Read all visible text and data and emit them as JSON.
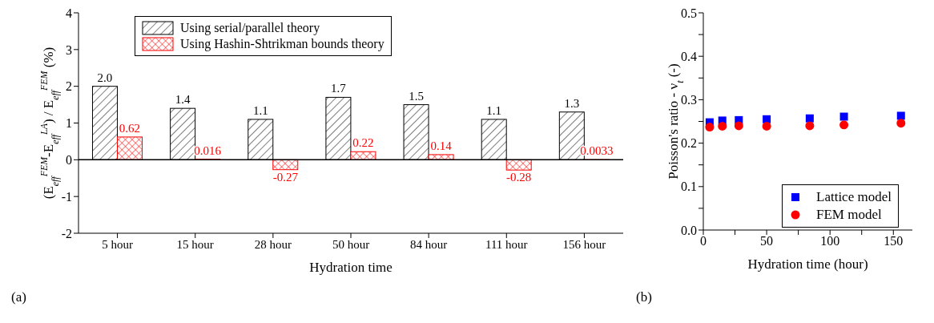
{
  "chart_data": [
    {
      "type": "bar",
      "xlabel": "Hydration time",
      "ylabel": "(E$_{eff}$$^{FEM}$-E$_{eff}$$^{LA}$) / E$_{eff}$$^{FEM}$ (%)",
      "categories": [
        "5 hour",
        "15 hour",
        "28 hour",
        "50 hour",
        "84 hour",
        "111 hour",
        "156 hour"
      ],
      "series": [
        {
          "name": "Using serial/parallel theory",
          "color": "#000000",
          "values": [
            2.0,
            1.4,
            1.1,
            1.7,
            1.5,
            1.1,
            1.3
          ],
          "value_labels": [
            "2.0",
            "1.4",
            "1.1",
            "1.7",
            "1.5",
            "1.1",
            "1.3"
          ]
        },
        {
          "name": "Using Hashin-Shtrikman bounds theory",
          "color": "#ff0000",
          "values": [
            0.62,
            0.016,
            -0.27,
            0.22,
            0.14,
            -0.28,
            0.0033
          ],
          "value_labels": [
            "0.62",
            "0.016",
            "-0.27",
            "0.22",
            "0.14",
            "-0.28",
            "0.0033"
          ]
        }
      ],
      "ylim": [
        -2,
        4
      ],
      "yticks": [
        -2,
        -1,
        0,
        1,
        2,
        3,
        4
      ],
      "ref_lines": [
        {
          "axis": "y",
          "value": 0,
          "color": "#000000"
        }
      ],
      "grid": false,
      "legend": "top",
      "annotations": [
        "(a)"
      ]
    },
    {
      "type": "scatter",
      "xlabel": "Hydration time (hour)",
      "ylabel": "Poisson's ratio - ν$_{t}$ (-)",
      "series": [
        {
          "name": "Lattice model",
          "color": "#0000ff",
          "marker": "square",
          "x": [
            5,
            15,
            28,
            50,
            84,
            111,
            156
          ],
          "values": [
            0.248,
            0.252,
            0.253,
            0.255,
            0.257,
            0.261,
            0.263
          ]
        },
        {
          "name": "FEM model",
          "color": "#ff0000",
          "marker": "circle",
          "x": [
            5,
            15,
            28,
            50,
            84,
            111,
            156
          ],
          "values": [
            0.237,
            0.239,
            0.24,
            0.239,
            0.24,
            0.242,
            0.246
          ]
        }
      ],
      "xlim": [
        0,
        165
      ],
      "xticks": [
        0,
        {
          "value": 25,
          "label": null
        },
        50,
        {
          "value": 75,
          "label": null
        },
        100,
        {
          "value": 125,
          "label": null
        },
        150
      ],
      "ylim": [
        0,
        0.5
      ],
      "yticks": [
        {
          "value": 0,
          "label": "0.0"
        },
        {
          "value": 0.05,
          "label": null
        },
        0.1,
        {
          "value": 0.15,
          "label": null
        },
        0.2,
        {
          "value": 0.25,
          "label": null
        },
        0.3,
        {
          "value": 0.35,
          "label": null
        },
        0.4,
        {
          "value": 0.45,
          "label": null
        },
        0.5
      ],
      "grid": false,
      "legend": "bottom right",
      "annotations": [
        "(b)"
      ]
    }
  ]
}
